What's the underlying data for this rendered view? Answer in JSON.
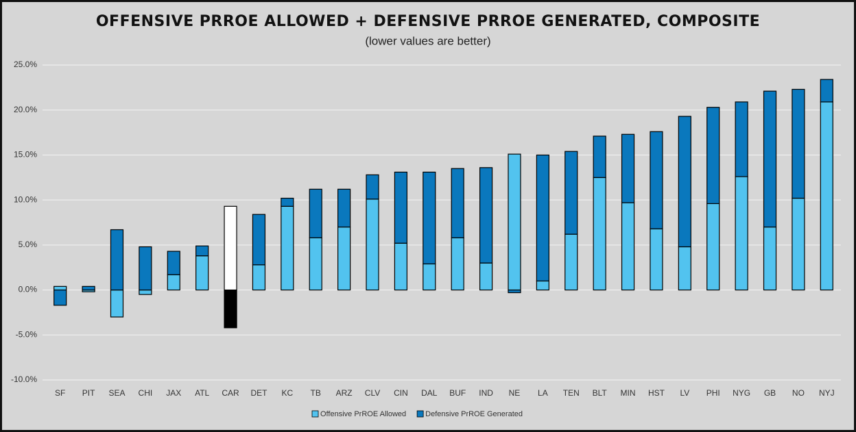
{
  "chart_data": {
    "type": "stacked_bar",
    "title": "OFFENSIVE PRROE ALLOWED + DEFENSIVE PRROE GENERATED, COMPOSITE",
    "subtitle": "(lower values are better)",
    "categories": [
      "SF",
      "PIT",
      "SEA",
      "CHI",
      "JAX",
      "ATL",
      "CAR",
      "DET",
      "KC",
      "TB",
      "ARZ",
      "CLV",
      "CIN",
      "DAL",
      "BUF",
      "IND",
      "NE",
      "LA",
      "TEN",
      "BLT",
      "MIN",
      "HST",
      "LV",
      "PHI",
      "NYG",
      "GB",
      "NO",
      "NYJ"
    ],
    "series": [
      {
        "name": "Offensive PrROE Allowed",
        "color": "#52c3ef",
        "highlight_color": "#ffffff",
        "values": [
          0.4,
          -0.2,
          -3.0,
          -0.5,
          1.7,
          3.8,
          9.3,
          2.8,
          9.3,
          5.8,
          7.0,
          10.1,
          5.2,
          2.9,
          5.8,
          3.0,
          15.1,
          1.0,
          6.2,
          12.5,
          9.7,
          6.8,
          4.8,
          9.6,
          12.6,
          7.0,
          10.2,
          20.9
        ]
      },
      {
        "name": "Defensive PrROE Generated",
        "color": "#0a78bd",
        "highlight_color": "#000000",
        "values": [
          -1.7,
          0.4,
          6.7,
          4.8,
          2.6,
          1.1,
          -4.2,
          5.6,
          0.9,
          5.4,
          4.2,
          2.7,
          7.9,
          10.2,
          7.7,
          10.6,
          -0.3,
          14.0,
          9.2,
          4.6,
          7.6,
          10.8,
          14.5,
          10.7,
          8.3,
          15.1,
          12.1,
          2.5
        ]
      }
    ],
    "highlight": "CAR",
    "ylim": [
      -10,
      25
    ],
    "yticks": [
      {
        "value": -10,
        "label": "-10.0%"
      },
      {
        "value": -5,
        "label": "-5.0%"
      },
      {
        "value": 0,
        "label": "0.0%"
      },
      {
        "value": 5,
        "label": "5.0%"
      },
      {
        "value": 10,
        "label": "10.0%"
      },
      {
        "value": 15,
        "label": "15.0%"
      },
      {
        "value": 20,
        "label": "20.0%"
      },
      {
        "value": 25,
        "label": "25.0%"
      }
    ],
    "grid": true,
    "legend": "bottom"
  }
}
